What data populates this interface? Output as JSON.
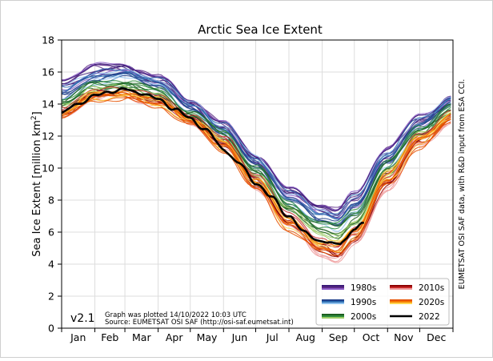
{
  "chart_data": {
    "type": "line",
    "title": "Arctic Sea Ice Extent",
    "ylabel_main": "Sea Ice Extent [million km",
    "ylabel_sup": "2",
    "ylabel_end": "]",
    "ylim": [
      0,
      18
    ],
    "yticks": [
      0,
      2,
      4,
      6,
      8,
      10,
      12,
      14,
      16,
      18
    ],
    "xlim": [
      1,
      366
    ],
    "months": [
      "Jan",
      "Feb",
      "Mar",
      "Apr",
      "May",
      "Jun",
      "Jul",
      "Aug",
      "Sep",
      "Oct",
      "Nov",
      "Dec"
    ],
    "grid": true,
    "legend_position": "bottom-right",
    "legend": [
      {
        "label": "1980s",
        "color": "#5b2a86",
        "colors": [
          "#3c1a78",
          "#5b2a86",
          "#8a5ac6"
        ]
      },
      {
        "label": "2010s",
        "color": "#c62828",
        "colors": [
          "#8e0000",
          "#c62828",
          "#ef9a9a"
        ]
      },
      {
        "label": "1990s",
        "color": "#2f6fb3",
        "colors": [
          "#1e3f8a",
          "#2f6fb3",
          "#8fc2ee"
        ]
      },
      {
        "label": "2020s",
        "color": "#f57c00",
        "colors": [
          "#e65100",
          "#f57c00",
          "#ffd54f"
        ]
      },
      {
        "label": "2000s",
        "color": "#2e8b3d",
        "colors": [
          "#1b5e20",
          "#2e8b3d",
          "#9ccc65"
        ]
      },
      {
        "label": "2022",
        "color": "#000000",
        "colors": [
          "#000000"
        ]
      }
    ],
    "highlight_series": {
      "name": "2022",
      "color": "#000000",
      "x": [
        1,
        15,
        32,
        46,
        60,
        75,
        91,
        106,
        121,
        135,
        152,
        166,
        182,
        196,
        213,
        227,
        244,
        250,
        255,
        260,
        265,
        274,
        283
      ],
      "y": [
        13.4,
        14.0,
        14.5,
        14.8,
        14.9,
        14.7,
        14.3,
        13.7,
        13.1,
        12.4,
        11.2,
        10.3,
        9.1,
        8.2,
        7.0,
        6.0,
        5.4,
        5.3,
        5.25,
        5.35,
        5.55,
        6.15,
        6.55
      ]
    },
    "decade_series": [
      {
        "decade": "1980s",
        "x": [
          1,
          32,
          60,
          91,
          121,
          152,
          182,
          213,
          244,
          258,
          274,
          305,
          335,
          366
        ],
        "y_range": [
          [
            14.7,
            15.7
          ],
          [
            15.7,
            16.6
          ],
          [
            16.0,
            16.5
          ],
          [
            15.3,
            15.8
          ],
          [
            13.8,
            14.4
          ],
          [
            12.3,
            12.9
          ],
          [
            10.2,
            11.0
          ],
          [
            8.2,
            8.8
          ],
          [
            7.2,
            7.8
          ],
          [
            6.9,
            7.5
          ],
          [
            7.5,
            8.6
          ],
          [
            10.5,
            11.5
          ],
          [
            12.5,
            13.4
          ],
          [
            14.0,
            14.6
          ]
        ]
      },
      {
        "decade": "1990s",
        "x": [
          1,
          32,
          60,
          91,
          121,
          152,
          182,
          213,
          244,
          258,
          274,
          305,
          335,
          366
        ],
        "y_range": [
          [
            14.1,
            15.2
          ],
          [
            15.2,
            16.0
          ],
          [
            15.7,
            16.1
          ],
          [
            14.9,
            15.6
          ],
          [
            13.4,
            14.2
          ],
          [
            11.9,
            12.7
          ],
          [
            9.8,
            10.8
          ],
          [
            7.6,
            8.5
          ],
          [
            6.3,
            7.4
          ],
          [
            6.1,
            7.2
          ],
          [
            7.0,
            8.2
          ],
          [
            10.0,
            11.1
          ],
          [
            12.3,
            13.1
          ],
          [
            13.8,
            14.5
          ]
        ]
      },
      {
        "decade": "2000s",
        "x": [
          1,
          32,
          60,
          91,
          121,
          152,
          182,
          213,
          244,
          258,
          274,
          305,
          335,
          366
        ],
        "y_range": [
          [
            13.8,
            14.5
          ],
          [
            14.8,
            15.4
          ],
          [
            15.0,
            15.6
          ],
          [
            14.4,
            15.0
          ],
          [
            13.1,
            13.7
          ],
          [
            11.6,
            12.4
          ],
          [
            9.5,
            10.3
          ],
          [
            7.3,
            7.9
          ],
          [
            5.8,
            6.8
          ],
          [
            5.4,
            6.7
          ],
          [
            6.3,
            7.7
          ],
          [
            9.5,
            10.6
          ],
          [
            12.0,
            12.8
          ],
          [
            13.4,
            14.0
          ]
        ]
      },
      {
        "decade": "2010s",
        "x": [
          1,
          32,
          60,
          91,
          121,
          152,
          182,
          213,
          244,
          258,
          274,
          305,
          335,
          366
        ],
        "y_range": [
          [
            13.2,
            13.9
          ],
          [
            14.3,
            14.9
          ],
          [
            14.4,
            15.1
          ],
          [
            13.9,
            14.6
          ],
          [
            12.8,
            13.4
          ],
          [
            11.1,
            12.1
          ],
          [
            8.7,
            9.8
          ],
          [
            6.2,
            7.3
          ],
          [
            4.5,
            5.7
          ],
          [
            4.0,
            5.3
          ],
          [
            5.0,
            6.4
          ],
          [
            8.6,
            9.8
          ],
          [
            11.3,
            12.3
          ],
          [
            12.9,
            13.6
          ]
        ]
      },
      {
        "decade": "2020s",
        "x": [
          1,
          32,
          60,
          91,
          121,
          152,
          182,
          213,
          244,
          258,
          274,
          305,
          335,
          366
        ],
        "y_range": [
          [
            13.1,
            13.6
          ],
          [
            14.2,
            14.7
          ],
          [
            14.3,
            14.8
          ],
          [
            13.8,
            14.3
          ],
          [
            12.7,
            13.2
          ],
          [
            11.0,
            11.7
          ],
          [
            8.6,
            9.4
          ],
          [
            6.0,
            6.9
          ],
          [
            4.7,
            5.4
          ],
          [
            4.5,
            5.3
          ],
          [
            5.5,
            6.3
          ],
          [
            8.9,
            9.8
          ],
          [
            11.2,
            12.1
          ],
          [
            12.9,
            13.4
          ]
        ]
      }
    ],
    "version": "v2.1",
    "note_line1": "Graph was plotted 14/10/2022 10:03 UTC",
    "note_line2": "Source: EUMETSAT OSI SAF (http://osi-saf.eumetsat.int)",
    "credit": "EUMETSAT OSI SAF data, with R&D input from ESA CCI."
  }
}
